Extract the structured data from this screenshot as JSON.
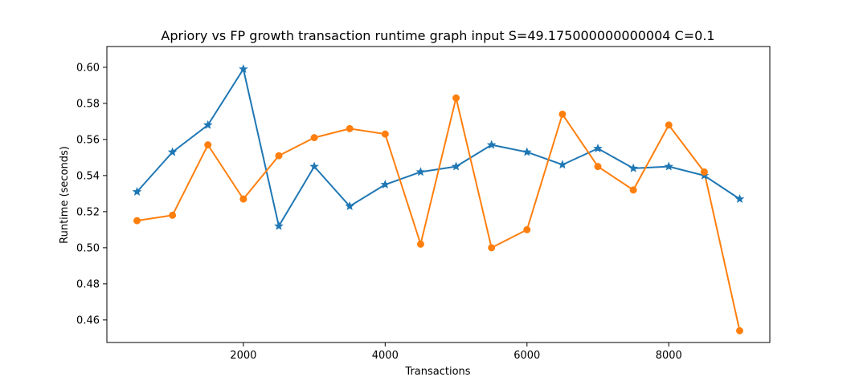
{
  "chart_data": {
    "type": "line",
    "title": "Apriory vs FP growth transaction runtime graph input S=49.175000000000004 C=0.1",
    "xlabel": "Transactions",
    "ylabel": "Runtime (seconds)",
    "xlim": [
      75,
      9425
    ],
    "ylim": [
      0.4475,
      0.6115
    ],
    "x_ticks": [
      2000,
      4000,
      6000,
      8000
    ],
    "x_tick_labels": [
      "2000",
      "4000",
      "6000",
      "8000"
    ],
    "y_ticks": [
      0.46,
      0.48,
      0.5,
      0.52,
      0.54,
      0.56,
      0.58,
      0.6
    ],
    "y_tick_labels": [
      "0.46",
      "0.48",
      "0.50",
      "0.52",
      "0.54",
      "0.56",
      "0.58",
      "0.60"
    ],
    "grid": false,
    "x": [
      500,
      1000,
      1500,
      2000,
      2500,
      3000,
      3500,
      4000,
      4500,
      5000,
      5500,
      6000,
      6500,
      7000,
      7500,
      8000,
      8500,
      9000
    ],
    "series": [
      {
        "color": "#1f77b4",
        "marker": "star",
        "values": [
          0.531,
          0.553,
          0.568,
          0.599,
          0.512,
          0.545,
          0.523,
          0.535,
          0.542,
          0.545,
          0.557,
          0.553,
          0.546,
          0.555,
          0.544,
          0.545,
          0.54,
          0.527
        ]
      },
      {
        "color": "#ff7f0e",
        "marker": "circle",
        "values": [
          0.515,
          0.518,
          0.557,
          0.527,
          0.551,
          0.561,
          0.566,
          0.563,
          0.502,
          0.583,
          0.5,
          0.51,
          0.574,
          0.545,
          0.532,
          0.568,
          0.542,
          0.454
        ]
      }
    ]
  }
}
